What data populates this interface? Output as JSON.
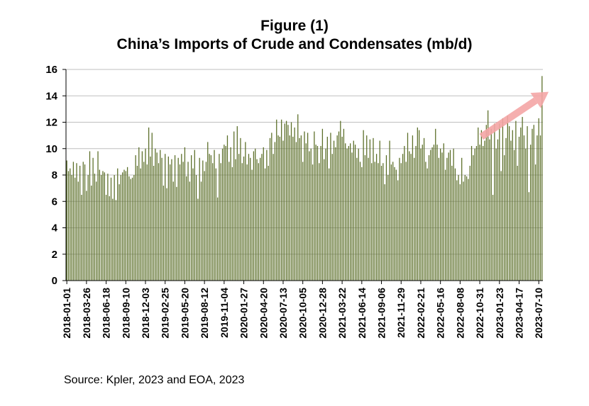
{
  "chart_data": {
    "type": "bar",
    "title": "Figure (1)",
    "subtitle": "China’s Imports of Crude and Condensates (mb/d)",
    "source": "Source: Kpler, 2023 and EOA, 2023",
    "ylim": [
      0,
      16
    ],
    "yticks": [
      0,
      2,
      4,
      6,
      8,
      10,
      12,
      14,
      16
    ],
    "grid": true,
    "bar_color": "#5b6e28",
    "arrow_color": "#f4a6a6",
    "x_tick_labels": [
      "2018-01-01",
      "2018-03-26",
      "2018-06-18",
      "2018-09-10",
      "2018-12-03",
      "2019-02-25",
      "2019-05-20",
      "2019-08-12",
      "2019-11-04",
      "2020-01-27",
      "2020-04-20",
      "2020-07-13",
      "2020-10-05",
      "2020-12-28",
      "2021-03-22",
      "2021-06-14",
      "2021-09-06",
      "2021-11-29",
      "2022-02-21",
      "2022-05-16",
      "2022-08-08",
      "2022-10-31",
      "2023-01-23",
      "2023-04-17",
      "2023-07-10"
    ],
    "arrow": {
      "from": {
        "x": "2022-11-07",
        "y": 10.9
      },
      "to": {
        "x": "2023-08-21",
        "y": 14.3
      }
    },
    "values": [
      9.1,
      8.3,
      8.5,
      8.0,
      9.0,
      7.8,
      8.9,
      7.5,
      8.7,
      6.5,
      9.0,
      8.8,
      6.8,
      8.0,
      9.8,
      7.2,
      9.3,
      8.1,
      7.5,
      9.8,
      8.4,
      8.0,
      8.3,
      8.2,
      6.5,
      8.1,
      6.4,
      7.8,
      6.2,
      8.0,
      6.1,
      8.5,
      7.3,
      8.0,
      8.2,
      8.4,
      8.3,
      8.6,
      7.9,
      7.7,
      7.8,
      8.0,
      9.5,
      8.7,
      10.1,
      8.5,
      9.8,
      9.0,
      10.0,
      8.8,
      11.6,
      9.4,
      11.2,
      8.7,
      10.0,
      9.7,
      8.9,
      9.9,
      9.3,
      7.2,
      9.6,
      7.0,
      9.4,
      8.8,
      9.2,
      7.5,
      9.5,
      7.1,
      9.3,
      8.8,
      9.6,
      9.0,
      10.1,
      7.9,
      9.0,
      7.5,
      9.5,
      8.5,
      9.9,
      8.0,
      6.2,
      9.3,
      7.5,
      9.1,
      8.3,
      9.0,
      10.5,
      9.6,
      9.5,
      8.9,
      9.9,
      8.5,
      6.3,
      9.6,
      8.9,
      10.0,
      10.3,
      10.2,
      11.0,
      9.0,
      10.1,
      8.6,
      11.3,
      9.2,
      11.7,
      9.6,
      10.8,
      8.9,
      9.4,
      10.5,
      8.8,
      9.6,
      9.3,
      8.4,
      9.8,
      10.0,
      9.2,
      8.9,
      9.3,
      9.6,
      10.1,
      8.5,
      9.9,
      8.7,
      10.8,
      11.2,
      9.6,
      10.5,
      12.2,
      11.0,
      10.9,
      12.2,
      10.6,
      11.9,
      12.1,
      11.8,
      11.0,
      12.0,
      10.9,
      11.6,
      10.5,
      12.6,
      10.8,
      11.0,
      9.0,
      11.3,
      10.4,
      11.2,
      9.8,
      10.0,
      8.8,
      11.3,
      10.3,
      10.2,
      8.9,
      10.2,
      11.5,
      9.2,
      10.0,
      10.9,
      8.5,
      11.2,
      9.6,
      10.6,
      10.1,
      11.0,
      11.3,
      12.1,
      10.9,
      11.5,
      10.4,
      10.0,
      10.2,
      10.4,
      9.7,
      10.6,
      10.3,
      9.3,
      10.0,
      9.0,
      8.6,
      11.4,
      9.5,
      11.0,
      9.3,
      10.7,
      8.9,
      10.8,
      9.0,
      9.6,
      8.9,
      10.6,
      8.7,
      8.9,
      7.3,
      9.5,
      8.0,
      10.6,
      8.8,
      9.0,
      8.6,
      8.4,
      7.6,
      9.3,
      8.9,
      9.6,
      10.2,
      9.0,
      11.2,
      9.8,
      9.6,
      11.0,
      9.3,
      10.2,
      11.6,
      11.4,
      10.0,
      10.3,
      10.8,
      9.0,
      8.5,
      9.5,
      9.9,
      10.1,
      10.3,
      11.5,
      10.3,
      9.3,
      10.0,
      9.7,
      10.4,
      8.4,
      9.3,
      9.7,
      9.9,
      8.7,
      10.0,
      8.5,
      7.6,
      8.0,
      7.3,
      9.3,
      7.5,
      8.0,
      7.9,
      7.7,
      8.7,
      10.2,
      9.5,
      10.0,
      10.2,
      11.6,
      10.3,
      11.4,
      10.2,
      10.6,
      11.8,
      12.9,
      10.7,
      11.5,
      6.5,
      11.9,
      10.0,
      10.7,
      11.9,
      8.3,
      12.3,
      9.5,
      10.8,
      12.5,
      11.7,
      10.6,
      11.4,
      9.9,
      12.1,
      8.7,
      10.9,
      11.6,
      12.4,
      11.0,
      10.0,
      11.7,
      6.7,
      10.3,
      11.5,
      11.8,
      8.8,
      11.0,
      12.3,
      11.0,
      15.5
    ]
  }
}
